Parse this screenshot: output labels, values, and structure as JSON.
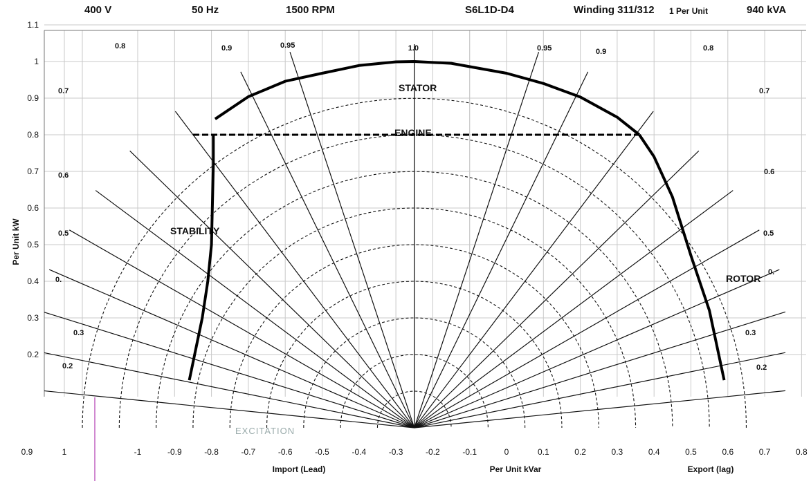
{
  "header": {
    "voltage": "400 V",
    "frequency": "50 Hz",
    "speed": "1500 RPM",
    "model": "S6L1D-D4",
    "winding": "Winding 311/312",
    "per_unit_note": "1 Per Unit",
    "rating": "940 kVA"
  },
  "chart_data": {
    "type": "line",
    "title": "",
    "xlabel": "Per Unit kVar",
    "xlabel_left": "Import (Lead)",
    "xlabel_right": "Export (lag)",
    "ylabel": "Per Unit kW",
    "xlim": [
      -1.05,
      0.8
    ],
    "ylim": [
      0,
      1.1
    ],
    "center_x": -0.25,
    "x_ticks": [
      "-1",
      "-0.9",
      "-0.8",
      "-0.7",
      "-0.6",
      "-0.5",
      "-0.4",
      "-0.3",
      "-0.2",
      "-0.1",
      "0",
      "0.1",
      "0.2",
      "0.3",
      "0.4",
      "0.5",
      "0.6",
      "0.7",
      "0.8"
    ],
    "x_ticks_extra": [
      "0.9",
      "1"
    ],
    "y_ticks": [
      "0.2",
      "0.3",
      "0.4",
      "0.5",
      "0.6",
      "0.7",
      "0.8",
      "0.9",
      "1",
      "1.1"
    ],
    "grid": true,
    "dashed_circle_radii": [
      0.1,
      0.2,
      0.3,
      0.4,
      0.5,
      0.6,
      0.7,
      0.8,
      0.9
    ],
    "power_factor_lines": [
      0.1,
      0.2,
      0.3,
      0.4,
      0.5,
      0.6,
      0.7,
      0.8,
      0.9,
      0.95,
      1.0
    ],
    "pf_labels_left": [
      "0.8",
      "0.9",
      "0.95",
      "0.7",
      "0.6",
      "0.5",
      "0.",
      "0.3",
      "0.2"
    ],
    "pf_labels_right": [
      "0.95",
      "0.9",
      "0.8",
      "0.7",
      "0.6",
      "0.5",
      "0.",
      "0.3",
      "0.2"
    ],
    "pf_label_top": "1.0",
    "series": [
      {
        "name": "STATOR",
        "x": [
          -0.79,
          -0.7,
          -0.6,
          -0.5,
          -0.4,
          -0.3,
          -0.25,
          -0.15,
          0.0,
          0.1,
          0.2,
          0.3,
          0.36
        ],
        "y": [
          0.843,
          0.904,
          0.946,
          0.968,
          0.989,
          0.999,
          1.0,
          0.995,
          0.968,
          0.94,
          0.903,
          0.848,
          0.8
        ]
      },
      {
        "name": "ENGINE",
        "x": [
          -0.85,
          0.36
        ],
        "y": [
          0.8,
          0.8
        ]
      },
      {
        "name": "STABILITY",
        "x": [
          -0.795,
          -0.795,
          -0.8,
          -0.81,
          -0.825,
          -0.86
        ],
        "y": [
          0.8,
          0.72,
          0.5,
          0.4,
          0.3,
          0.13
        ]
      },
      {
        "name": "ROTOR",
        "x": [
          0.36,
          0.4,
          0.45,
          0.5,
          0.55,
          0.59
        ],
        "y": [
          0.8,
          0.74,
          0.63,
          0.47,
          0.32,
          0.13
        ]
      }
    ],
    "annotations": {
      "stator": "STATOR",
      "engine": "ENGINE",
      "stability": "STABILITY",
      "rotor": "ROTOR",
      "excitation": "EXCITATION"
    }
  }
}
